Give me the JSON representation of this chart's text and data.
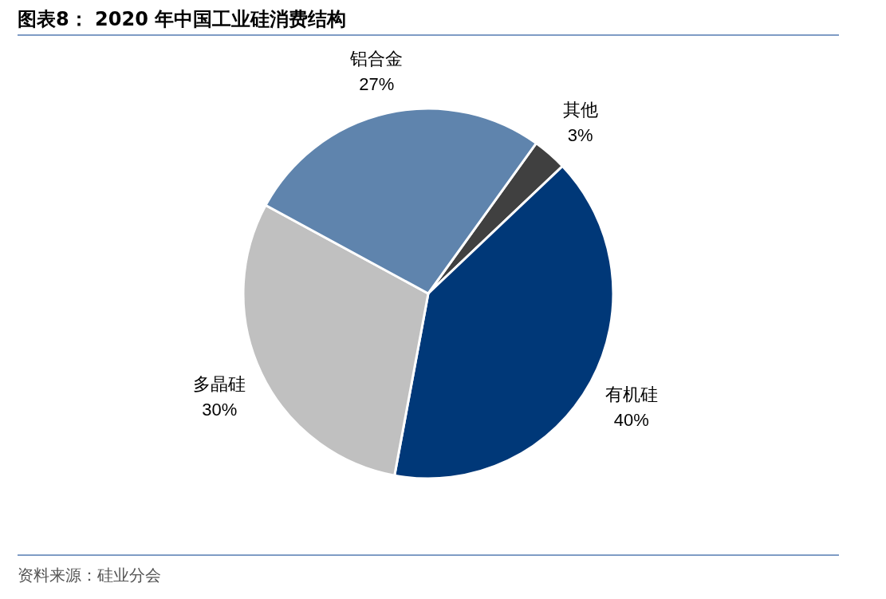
{
  "chart_data": {
    "type": "pie",
    "title": "图表8：  2020 年中国工业硅消费结构",
    "categories": [
      "其他",
      "有机硅",
      "多晶硅",
      "铝合金"
    ],
    "values": [
      3,
      40,
      30,
      27
    ],
    "value_labels": [
      "3%",
      "40%",
      "30%",
      "27%"
    ],
    "colors": [
      "#404040",
      "#003878",
      "#c0c0c0",
      "#5f84ad"
    ],
    "annotations": [
      "资料来源：硅业分会"
    ]
  }
}
